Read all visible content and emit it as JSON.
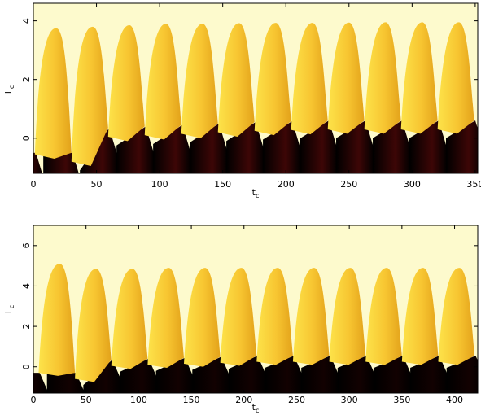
{
  "chart_data": [
    {
      "type": "heatmap",
      "title": "",
      "xlabel": "t",
      "xlabel_sub": "c",
      "ylabel": "L",
      "ylabel_sub": "c",
      "xlim": [
        0,
        352
      ],
      "ylim": [
        -1.2,
        4.6
      ],
      "xticks": [
        0,
        50,
        100,
        150,
        200,
        250,
        300,
        350
      ],
      "xtick_labels": [
        "0",
        "50",
        "100",
        "150",
        "200",
        "250",
        "300",
        "350"
      ],
      "yticks": [
        0,
        2,
        4
      ],
      "ytick_labels": [
        "0",
        "2",
        "4"
      ],
      "grid": false,
      "period": 29,
      "first_peak_t": 18,
      "peak_heights": [
        3.75,
        3.8,
        3.85,
        3.9,
        3.9,
        3.92,
        3.93,
        3.93,
        3.94,
        3.95,
        3.95,
        3.95
      ],
      "lower_boundary_peaks": [
        -0.5,
        0.35,
        0.4,
        0.45,
        0.5,
        0.55,
        0.58,
        0.6,
        0.6,
        0.6,
        0.6,
        0.6
      ],
      "lower_boundary_trough": -0.55,
      "colors": {
        "background": "#fdfacd",
        "flame_light": "#fde34a",
        "flame_dark": "#e3a21a",
        "low": "#000000",
        "low_mid": "#3d0606"
      }
    },
    {
      "type": "heatmap",
      "title": "",
      "xlabel": "t",
      "xlabel_sub": "c",
      "ylabel": "L",
      "ylabel_sub": "c",
      "xlim": [
        0,
        422
      ],
      "ylim": [
        -1.3,
        7.0
      ],
      "xticks": [
        0,
        50,
        100,
        150,
        200,
        250,
        300,
        350,
        400
      ],
      "xtick_labels": [
        "0",
        "50",
        "100",
        "150",
        "200",
        "250",
        "300",
        "350",
        "400"
      ],
      "yticks": [
        0,
        2,
        4,
        6
      ],
      "ytick_labels": [
        "0",
        "2",
        "4",
        "6"
      ],
      "grid": false,
      "period": 34.5,
      "first_peak_t": 25,
      "peak_heights": [
        5.1,
        4.85,
        4.85,
        4.9,
        4.9,
        4.9,
        4.9,
        4.9,
        4.9,
        4.9,
        4.9,
        4.9
      ],
      "lower_boundary_peaks": [
        -0.3,
        0.35,
        0.4,
        0.45,
        0.5,
        0.55,
        0.55,
        0.55,
        0.55,
        0.55,
        0.55,
        0.55
      ],
      "lower_boundary_trough": -0.3,
      "colors": {
        "background": "#fdfacd",
        "flame_light": "#fde34a",
        "flame_dark": "#e3a21a",
        "low": "#000000",
        "low_mid": "#120101"
      }
    }
  ]
}
